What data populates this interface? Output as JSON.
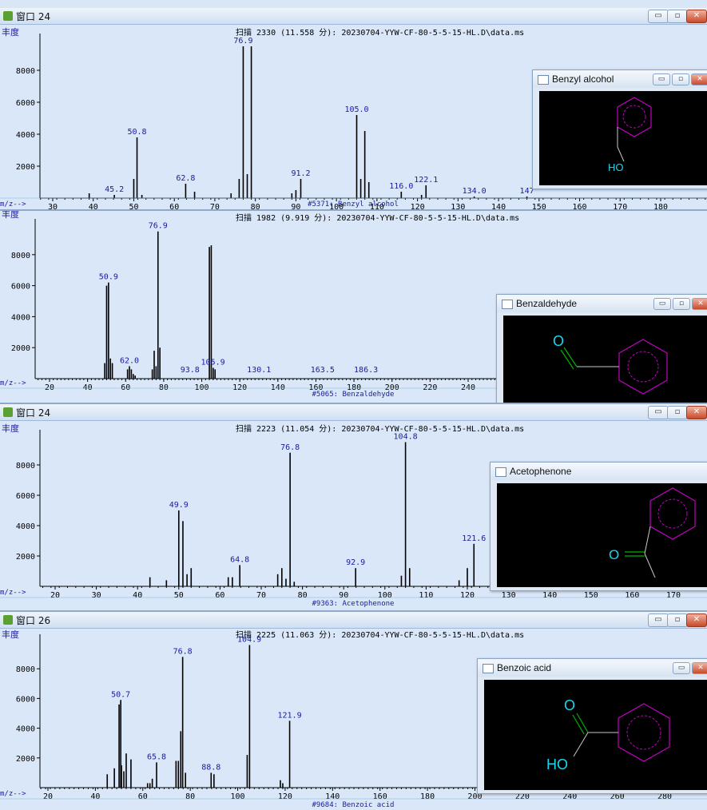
{
  "windows": [
    {
      "id": "w1",
      "title": "窗口 24",
      "show_titlebar": true
    },
    {
      "id": "w2",
      "title": "",
      "show_titlebar": false
    },
    {
      "id": "w3",
      "title": "窗口 24",
      "show_titlebar": true
    },
    {
      "id": "w4",
      "title": "窗口 26",
      "show_titlebar": true
    }
  ],
  "window_buttons": {
    "minimize": "▭",
    "restore": "▫",
    "close": "✕"
  },
  "colors": {
    "axis": "#000000",
    "bars": "#000000",
    "labels": "#1a1aa0",
    "baseline": "#2233aa",
    "ion_row": "#2233aa",
    "structure_ring": "#c000c0",
    "structure_bond": "#c8c8c8",
    "oxygen": "#19d6f0",
    "co_bond": "#00b000"
  },
  "chart_data": [
    {
      "type": "bar",
      "ylabel_cn": "丰度",
      "xlabel": "m/z-->",
      "scan_header": "扫描 2330 (11.558 分): 20230704-YYW-CF-80-5-5-15-HL.D\\data.ms",
      "library_hit": "#5371: Benzyl alcohol",
      "compound": "Benzyl alcohol",
      "xlim": [
        21,
        194
      ],
      "ylim": [
        0,
        10000
      ],
      "xticks": [
        30,
        40,
        50,
        60,
        70,
        80,
        90,
        100,
        110,
        120,
        130,
        140,
        150,
        160,
        170,
        180
      ],
      "yticks": [
        2000,
        4000,
        6000,
        8000
      ],
      "peaks": [
        [
          39,
          300
        ],
        [
          45.2,
          200
        ],
        [
          50,
          1200
        ],
        [
          50.8,
          3800
        ],
        [
          52,
          200
        ],
        [
          62.8,
          900
        ],
        [
          65,
          400
        ],
        [
          74,
          300
        ],
        [
          76,
          1200
        ],
        [
          77,
          9500
        ],
        [
          78,
          1500
        ],
        [
          79,
          9500
        ],
        [
          89,
          300
        ],
        [
          90,
          500
        ],
        [
          91.2,
          1200
        ],
        [
          105,
          5200
        ],
        [
          106,
          1200
        ],
        [
          107,
          4200
        ],
        [
          108,
          1000
        ],
        [
          116,
          400
        ],
        [
          121,
          200
        ],
        [
          122.1,
          800
        ],
        [
          134,
          100
        ],
        [
          147,
          100
        ]
      ],
      "peak_labels": [
        [
          45.2,
          "45.2"
        ],
        [
          50.8,
          "50.8"
        ],
        [
          62.8,
          "62.8"
        ],
        [
          77,
          "76.9"
        ],
        [
          91.2,
          "91.2"
        ],
        [
          105,
          "105.0"
        ],
        [
          116,
          "116.0"
        ],
        [
          122.1,
          "122.1"
        ],
        [
          134,
          "134.0"
        ],
        [
          147,
          "147"
        ]
      ]
    },
    {
      "type": "bar",
      "ylabel_cn": "丰度",
      "xlabel": "m/z-->",
      "scan_header": "扫描 1982 (9.919 分): 20230704-YYW-CF-80-5-5-15-HL.D\\data.ms",
      "library_hit": "#5065: Benzaldehyde",
      "compound": "Benzaldehyde",
      "xlim": [
        4,
        264
      ],
      "ylim": [
        0,
        10000
      ],
      "xticks": [
        20,
        40,
        60,
        80,
        100,
        120,
        140,
        160,
        180,
        200,
        220,
        240
      ],
      "yticks": [
        2000,
        4000,
        6000,
        8000
      ],
      "peaks": [
        [
          49,
          1000
        ],
        [
          50,
          6000
        ],
        [
          51,
          6200
        ],
        [
          52,
          1300
        ],
        [
          53,
          1000
        ],
        [
          61,
          600
        ],
        [
          62,
          800
        ],
        [
          63,
          600
        ],
        [
          64,
          300
        ],
        [
          65,
          200
        ],
        [
          74,
          600
        ],
        [
          75,
          1800
        ],
        [
          76,
          800
        ],
        [
          77,
          9500
        ],
        [
          78,
          2000
        ],
        [
          104,
          8500
        ],
        [
          105,
          8600
        ],
        [
          106,
          700
        ],
        [
          107,
          600
        ]
      ],
      "peak_labels": [
        [
          51,
          "50.9"
        ],
        [
          62,
          "62.0"
        ],
        [
          77,
          "76.9"
        ],
        [
          105.9,
          "105.9"
        ],
        [
          93.8,
          "93.8"
        ],
        [
          130.1,
          "130.1"
        ],
        [
          163.5,
          "163.5"
        ],
        [
          186.3,
          "186.3"
        ]
      ]
    },
    {
      "type": "bar",
      "ylabel_cn": "丰度",
      "xlabel": "m/z-->",
      "scan_header": "扫描 2223 (11.054 分): 20230704-YYW-CF-80-5-5-15-HL.D\\data.ms",
      "library_hit": "#9363: Acetophenone",
      "compound": "Acetophenone",
      "xlim": [
        11,
        182
      ],
      "ylim": [
        0,
        10000
      ],
      "xticks": [
        20,
        30,
        40,
        50,
        60,
        70,
        80,
        90,
        100,
        110,
        120,
        130,
        140,
        150,
        160,
        170
      ],
      "yticks": [
        2000,
        4000,
        6000,
        8000
      ],
      "peaks": [
        [
          43,
          600
        ],
        [
          47,
          400
        ],
        [
          50,
          5000
        ],
        [
          51,
          4300
        ],
        [
          52,
          800
        ],
        [
          53,
          1200
        ],
        [
          62,
          600
        ],
        [
          63,
          600
        ],
        [
          64.8,
          1400
        ],
        [
          74,
          800
        ],
        [
          75,
          1200
        ],
        [
          76,
          500
        ],
        [
          77,
          8800
        ],
        [
          78,
          300
        ],
        [
          92.9,
          1200
        ],
        [
          104,
          700
        ],
        [
          105,
          9500
        ],
        [
          106,
          1200
        ],
        [
          118,
          400
        ],
        [
          120,
          1200
        ],
        [
          121.6,
          2800
        ]
      ],
      "peak_labels": [
        [
          50,
          "49.9"
        ],
        [
          64.8,
          "64.8"
        ],
        [
          77,
          "76.8"
        ],
        [
          92.9,
          "92.9"
        ],
        [
          105,
          "104.8"
        ],
        [
          121.6,
          "121.6"
        ]
      ]
    },
    {
      "type": "bar",
      "ylabel_cn": "丰度",
      "xlabel": "m/z-->",
      "scan_header": "扫描 2225 (11.063 分): 20230704-YYW-CF-80-5-5-15-HL.D\\data.ms",
      "library_hit": "#9684: Benzoic acid",
      "compound": "Benzoic acid",
      "xlim": [
        15,
        295
      ],
      "ylim": [
        0,
        10000
      ],
      "xticks": [
        20,
        40,
        60,
        80,
        100,
        120,
        140,
        160,
        180,
        200,
        220,
        240,
        260,
        280
      ],
      "yticks": [
        2000,
        4000,
        6000,
        8000
      ],
      "peaks": [
        [
          45,
          900
        ],
        [
          48,
          1300
        ],
        [
          50,
          5600
        ],
        [
          50.7,
          5900
        ],
        [
          51,
          1500
        ],
        [
          52,
          1100
        ],
        [
          53,
          2300
        ],
        [
          55,
          1900
        ],
        [
          62,
          300
        ],
        [
          63,
          300
        ],
        [
          64,
          600
        ],
        [
          65.8,
          1700
        ],
        [
          74,
          1800
        ],
        [
          75,
          1800
        ],
        [
          76,
          3800
        ],
        [
          76.8,
          8800
        ],
        [
          78,
          1000
        ],
        [
          88.8,
          1000
        ],
        [
          90,
          900
        ],
        [
          104,
          2200
        ],
        [
          105,
          9600
        ],
        [
          118,
          500
        ],
        [
          119,
          300
        ],
        [
          121.9,
          4500
        ]
      ],
      "peak_labels": [
        [
          50.7,
          "50.7"
        ],
        [
          65.8,
          "65.8"
        ],
        [
          76.8,
          "76.8"
        ],
        [
          88.8,
          "88.8"
        ],
        [
          104.9,
          "104.9"
        ],
        [
          121.9,
          "121.9"
        ]
      ]
    }
  ],
  "structures": {
    "benzyl_alcohol": {
      "title": "Benzyl alcohol",
      "atoms": [
        "HO"
      ]
    },
    "benzaldehyde": {
      "title": "Benzaldehyde",
      "atoms": [
        "O"
      ]
    },
    "acetophenone": {
      "title": "Acetophenone",
      "atoms": [
        "O"
      ]
    },
    "benzoic_acid": {
      "title": "Benzoic acid",
      "atoms": [
        "O",
        "HO"
      ]
    }
  }
}
